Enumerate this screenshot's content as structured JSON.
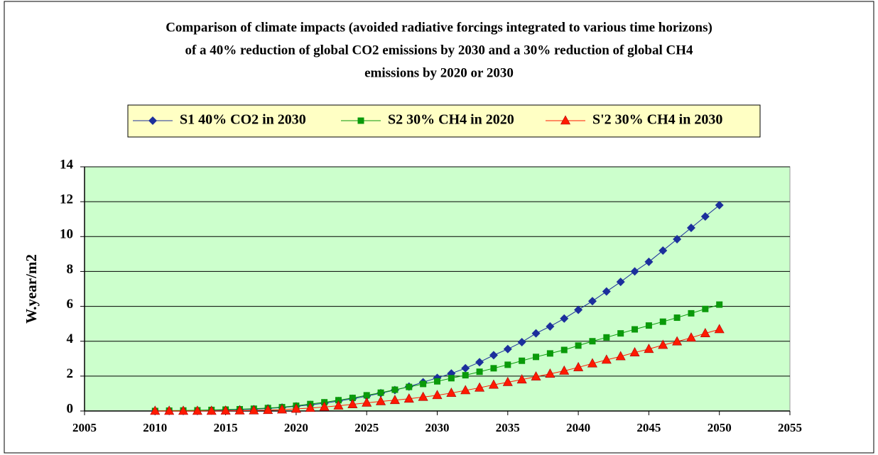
{
  "chart_data": {
    "type": "line",
    "title": [
      "Comparison of climate impacts (avoided radiative forcings integrated to various time horizons)",
      "of a 40% reduction of global CO2 emissions by 2030 and a 30% reduction of global CH4",
      "emissions by 2020 or 2030"
    ],
    "y_label": "W.year/m2",
    "x": [
      2010,
      2011,
      2012,
      2013,
      2014,
      2015,
      2016,
      2017,
      2018,
      2019,
      2020,
      2021,
      2022,
      2023,
      2024,
      2025,
      2026,
      2027,
      2028,
      2029,
      2030,
      2031,
      2032,
      2033,
      2034,
      2035,
      2036,
      2037,
      2038,
      2039,
      2040,
      2041,
      2042,
      2043,
      2044,
      2045,
      2046,
      2047,
      2048,
      2049,
      2050
    ],
    "series": [
      {
        "name": "S1 40% CO2 in 2030",
        "color": "#1c2f9c",
        "marker": "diamond",
        "values": [
          0,
          0,
          0,
          0,
          0.02,
          0.05,
          0.08,
          0.1,
          0.15,
          0.2,
          0.27,
          0.35,
          0.45,
          0.57,
          0.7,
          0.85,
          1.02,
          1.2,
          1.4,
          1.65,
          1.9,
          2.15,
          2.45,
          2.8,
          3.2,
          3.55,
          3.95,
          4.45,
          4.85,
          5.3,
          5.8,
          6.3,
          6.85,
          7.4,
          8.0,
          8.55,
          9.2,
          9.85,
          10.5,
          11.15,
          11.8
        ]
      },
      {
        "name": "S2 30% CH4 in 2020",
        "color": "#0a9a0a",
        "marker": "square",
        "values": [
          0,
          0.02,
          0.03,
          0.04,
          0.06,
          0.08,
          0.1,
          0.13,
          0.17,
          0.22,
          0.3,
          0.4,
          0.5,
          0.62,
          0.75,
          0.9,
          1.05,
          1.22,
          1.38,
          1.55,
          1.7,
          1.88,
          2.05,
          2.25,
          2.45,
          2.65,
          2.88,
          3.1,
          3.3,
          3.5,
          3.75,
          4.0,
          4.22,
          4.45,
          4.68,
          4.9,
          5.12,
          5.35,
          5.6,
          5.85,
          6.1
        ]
      },
      {
        "name": "S'2 30% CH4  in 2030",
        "color": "#ff1a00",
        "marker": "triangle",
        "values": [
          0,
          0,
          0,
          0,
          0,
          0.01,
          0.02,
          0.03,
          0.05,
          0.08,
          0.12,
          0.17,
          0.23,
          0.3,
          0.38,
          0.47,
          0.55,
          0.62,
          0.7,
          0.8,
          0.9,
          1.03,
          1.18,
          1.33,
          1.5,
          1.65,
          1.8,
          1.97,
          2.13,
          2.3,
          2.5,
          2.72,
          2.93,
          3.13,
          3.35,
          3.55,
          3.78,
          3.98,
          4.2,
          4.45,
          4.68
        ]
      }
    ],
    "xlim": [
      2005,
      2055
    ],
    "xticks": [
      2005,
      2010,
      2015,
      2020,
      2025,
      2030,
      2035,
      2040,
      2045,
      2050,
      2055
    ],
    "ylim": [
      0,
      14
    ],
    "yticks": [
      0,
      2,
      4,
      6,
      8,
      10,
      12,
      14
    ],
    "grid": true,
    "plot_background": "#ccffcc",
    "legend_background": "#ffffc4"
  }
}
